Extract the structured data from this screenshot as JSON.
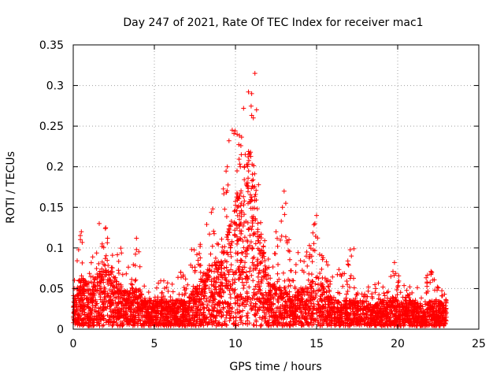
{
  "chart_data": {
    "type": "scatter",
    "title": "Day 247 of 2021, Rate Of TEC Index for receiver mac1",
    "xlabel": "GPS time / hours",
    "ylabel": "ROTI / TECUs",
    "xlim": [
      0,
      25
    ],
    "ylim": [
      0,
      0.35
    ],
    "x_ticks": [
      0,
      5,
      10,
      15,
      20,
      25
    ],
    "x_tick_labels": [
      "0",
      "5",
      "10",
      "15",
      "20",
      "25"
    ],
    "y_ticks": [
      0,
      0.05,
      0.1,
      0.15,
      0.2,
      0.25,
      0.3,
      0.35
    ],
    "y_tick_labels": [
      "0",
      "0.05",
      "0.1",
      "0.15",
      "0.2",
      "0.25",
      "0.3",
      "0.35"
    ],
    "grid": true,
    "marker": "+",
    "color": "#ff0000",
    "x_range_covered": [
      0,
      23
    ],
    "envelope": {
      "x": [
        0,
        0.25,
        0.5,
        1,
        1.5,
        2,
        2.5,
        3,
        3.5,
        4,
        4.5,
        5,
        5.5,
        6,
        6.5,
        7,
        7.5,
        8,
        8.5,
        9,
        9.5,
        10,
        10.5,
        11,
        11.5,
        12,
        12.5,
        13,
        13.5,
        14,
        14.5,
        15,
        15.5,
        16,
        16.5,
        17,
        17.5,
        18,
        18.5,
        19,
        19.5,
        20,
        20.5,
        21,
        21.5,
        22,
        22.5,
        23
      ],
      "max_roti": [
        0.07,
        0.09,
        0.12,
        0.09,
        0.09,
        0.13,
        0.1,
        0.1,
        0.07,
        0.11,
        0.05,
        0.05,
        0.06,
        0.05,
        0.07,
        0.06,
        0.1,
        0.11,
        0.15,
        0.13,
        0.23,
        0.27,
        0.29,
        0.31,
        0.15,
        0.1,
        0.1,
        0.17,
        0.07,
        0.1,
        0.1,
        0.14,
        0.09,
        0.07,
        0.07,
        0.1,
        0.06,
        0.05,
        0.05,
        0.06,
        0.06,
        0.08,
        0.05,
        0.05,
        0.05,
        0.07,
        0.05,
        0.04
      ],
      "typical_roti": [
        0.02,
        0.03,
        0.04,
        0.03,
        0.04,
        0.05,
        0.04,
        0.03,
        0.025,
        0.03,
        0.02,
        0.02,
        0.02,
        0.02,
        0.02,
        0.02,
        0.03,
        0.04,
        0.05,
        0.05,
        0.07,
        0.1,
        0.12,
        0.14,
        0.08,
        0.04,
        0.03,
        0.03,
        0.02,
        0.03,
        0.03,
        0.04,
        0.03,
        0.02,
        0.02,
        0.02,
        0.02,
        0.02,
        0.015,
        0.02,
        0.02,
        0.02,
        0.02,
        0.02,
        0.015,
        0.02,
        0.02,
        0.015
      ]
    },
    "outliers": [
      {
        "x": 11.2,
        "y": 0.315
      },
      {
        "x": 10.8,
        "y": 0.292
      },
      {
        "x": 11.0,
        "y": 0.29
      },
      {
        "x": 11.3,
        "y": 0.27
      },
      {
        "x": 10.5,
        "y": 0.272
      },
      {
        "x": 11.1,
        "y": 0.26
      },
      {
        "x": 9.8,
        "y": 0.245
      },
      {
        "x": 10.1,
        "y": 0.24
      },
      {
        "x": 9.6,
        "y": 0.232
      },
      {
        "x": 9.5,
        "y": 0.2
      },
      {
        "x": 10.6,
        "y": 0.215
      },
      {
        "x": 10.3,
        "y": 0.2
      },
      {
        "x": 13.0,
        "y": 0.17
      },
      {
        "x": 13.1,
        "y": 0.155
      },
      {
        "x": 12.9,
        "y": 0.15
      },
      {
        "x": 15.0,
        "y": 0.14
      },
      {
        "x": 14.9,
        "y": 0.13
      },
      {
        "x": 8.6,
        "y": 0.148
      },
      {
        "x": 1.6,
        "y": 0.13
      },
      {
        "x": 2.0,
        "y": 0.125
      },
      {
        "x": 0.5,
        "y": 0.12
      },
      {
        "x": 3.9,
        "y": 0.112
      },
      {
        "x": 3.9,
        "y": 0.098
      },
      {
        "x": 12.5,
        "y": 0.12
      },
      {
        "x": 13.3,
        "y": 0.11
      },
      {
        "x": 17.3,
        "y": 0.099
      },
      {
        "x": 19.8,
        "y": 0.082
      },
      {
        "x": 22.1,
        "y": 0.07
      },
      {
        "x": 14.4,
        "y": 0.095
      },
      {
        "x": 7.3,
        "y": 0.098
      }
    ]
  }
}
